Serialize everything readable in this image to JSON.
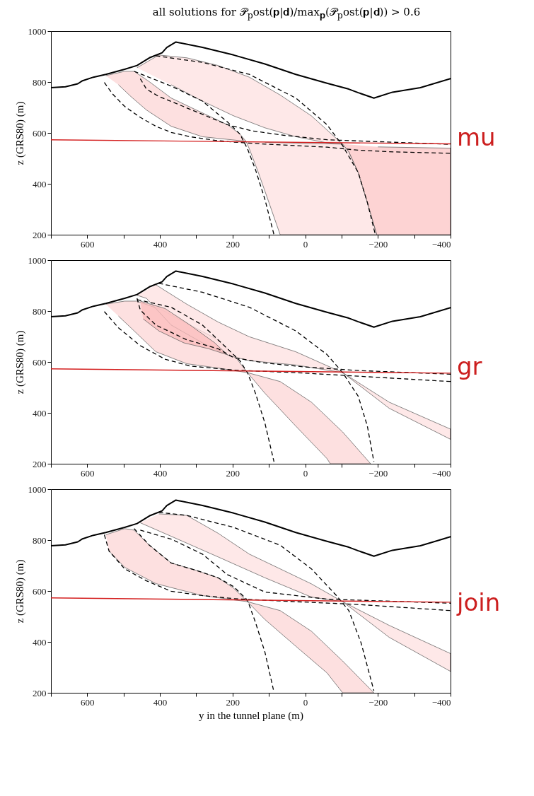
{
  "chart_data": [
    {
      "type": "line",
      "title": "all solutions for 𝒫$_{p}$ost(𝐩|𝐝)/max$_{𝐩}$(𝒫$_{p}$ost(𝐩|𝐝)) > 0.6",
      "ylabel": "z (GRS80) (m)",
      "annotations": [
        "mu"
      ],
      "xlim": [
        700,
        -400
      ],
      "xticks": [
        {
          "value": 700,
          "label": null
        },
        600,
        {
          "value": 500,
          "label": null
        },
        400,
        {
          "value": 300,
          "label": null
        },
        200,
        {
          "value": 100,
          "label": null
        },
        0,
        {
          "value": -100,
          "label": null
        },
        -200,
        {
          "value": -300,
          "label": null
        },
        -400
      ],
      "ylim": [
        200,
        1000
      ],
      "yticks": [
        200,
        400,
        600,
        800,
        1000
      ],
      "grid": false,
      "series": [
        {
          "type": "area",
          "color": "#fde0e0",
          "x": [
            549,
            497,
            471,
            429,
            369,
            300,
            214,
            180,
            163,
            283,
            369,
            437,
            480,
            514
          ],
          "values": [
            825,
            842,
            842,
            801,
            737,
            690,
            632,
            596,
            567,
            585,
            626,
            690,
            743,
            789
          ]
        },
        {
          "type": "area",
          "color": "#fde0e0",
          "x": [
            463,
            403,
            326,
            240,
            154,
            69,
            -17,
            -103,
            -60,
            26,
            111,
            197,
            283,
            369
          ],
          "values": [
            856,
            906,
            895,
            865,
            819,
            749,
            667,
            556,
            561,
            585,
            620,
            667,
            725,
            789
          ]
        },
        {
          "type": "area",
          "color": "#fde0e0",
          "x": [
            163,
            154,
            129,
            103,
            69,
            -197,
            -171,
            -146,
            -120,
            -103,
            26,
            111
          ],
          "values": [
            567,
            538,
            444,
            339,
            200,
            200,
            327,
            444,
            526,
            556,
            560,
            563
          ]
        },
        {
          "type": "area",
          "color": "#fcc4c4",
          "x": [
            -103,
            -120,
            -146,
            -171,
            -197,
            -400,
            -400,
            -200
          ],
          "values": [
            556,
            526,
            444,
            327,
            200,
            200,
            540,
            545
          ]
        },
        {
          "type": "line",
          "color": "#000000",
          "line_style": "dashed",
          "x": [
            553,
            531,
            497,
            454,
            411,
            369,
            317,
            249,
            197,
            111,
            26,
            -60,
            -146,
            -231,
            -400
          ],
          "values": [
            798,
            754,
            704,
            661,
            626,
            602,
            585,
            571,
            564,
            556,
            550,
            544,
            532,
            526,
            520
          ]
        },
        {
          "type": "line",
          "color": "#000000",
          "line_style": "dashed",
          "x": [
            454,
            437,
            403,
            351,
            283,
            214,
            146,
            60,
            -60,
            -400
          ],
          "values": [
            813,
            772,
            743,
            713,
            673,
            632,
            608,
            591,
            573,
            555
          ]
        },
        {
          "type": "line",
          "color": "#000000",
          "line_style": "dashed",
          "x": [
            471,
            369,
            283,
            214,
            180,
            159,
            137,
            111,
            86
          ],
          "values": [
            842,
            784,
            725,
            643,
            596,
            538,
            456,
            339,
            200
          ]
        },
        {
          "type": "line",
          "color": "#000000",
          "line_style": "dashed",
          "x": [
            411,
            283,
            154,
            26,
            -60,
            -103,
            -146,
            -171,
            -193
          ],
          "values": [
            903,
            877,
            830,
            737,
            632,
            550,
            444,
            327,
            200
          ]
        },
        {
          "type": "line",
          "color": "#d42020",
          "x": [
            700,
            -400
          ],
          "values": [
            573,
            557
          ]
        },
        {
          "type": "line",
          "color": "#000000",
          "x": [
            700,
            660,
            626,
            613,
            583,
            549,
            497,
            463,
            429,
            394,
            381,
            356,
            283,
            197,
            111,
            26,
            -60,
            -120,
            -146,
            -189,
            -240,
            -317,
            -400
          ],
          "values": [
            778,
            781,
            793,
            805,
            819,
            830,
            850,
            865,
            895,
            915,
            936,
            957,
            936,
            906,
            871,
            830,
            795,
            772,
            758,
            737,
            760,
            778,
            813
          ]
        }
      ]
    },
    {
      "type": "line",
      "ylabel": "z (GRS80) (m)",
      "annotations": [
        "gr"
      ],
      "xlim": [
        700,
        -400
      ],
      "xticks": [
        {
          "value": 700,
          "label": null
        },
        600,
        {
          "value": 500,
          "label": null
        },
        400,
        {
          "value": 300,
          "label": null
        },
        200,
        {
          "value": 100,
          "label": null
        },
        0,
        {
          "value": -100,
          "label": null
        },
        -200,
        {
          "value": -300,
          "label": null
        },
        -400
      ],
      "ylim": [
        200,
        1000
      ],
      "yticks": [
        200,
        400,
        600,
        800,
        1000
      ],
      "grid": false,
      "series": [
        {
          "type": "area",
          "color": "#fde0e0",
          "x": [
            549,
            497,
            463,
            394,
            317,
            240,
            197,
            159,
            111,
            26,
            -60,
            -69,
            -180,
            -103,
            -17,
            69,
            159,
            240,
            326,
            411,
            471,
            514
          ],
          "values": [
            827,
            839,
            839,
            804,
            745,
            687,
            628,
            558,
            477,
            348,
            220,
            200,
            200,
            325,
            442,
            523,
            558,
            576,
            593,
            640,
            722,
            780
          ]
        },
        {
          "type": "area",
          "color": "#fde0e0",
          "x": [
            411,
            326,
            240,
            154,
            26,
            -103,
            -231,
            -400,
            -400,
            -231,
            -103,
            26,
            154,
            206,
            283,
            369,
            437,
            463
          ],
          "values": [
            903,
            827,
            757,
            699,
            640,
            558,
            442,
            336,
            296,
            418,
            558,
            588,
            605,
            623,
            675,
            745,
            850,
            862
          ]
        },
        {
          "type": "area",
          "color": "#fbbcbc",
          "x": [
            454,
            386,
            317,
            249,
            214,
            266,
            334,
            403,
            446
          ],
          "values": [
            839,
            810,
            745,
            675,
            628,
            652,
            675,
            722,
            769
          ]
        },
        {
          "type": "line",
          "color": "#000000",
          "line_style": "dashed",
          "x": [
            553,
            514,
            454,
            386,
            317,
            197,
            26,
            -146,
            -400
          ],
          "values": [
            798,
            734,
            664,
            611,
            584,
            568,
            558,
            544,
            523
          ]
        },
        {
          "type": "line",
          "color": "#000000",
          "line_style": "dashed",
          "x": [
            463,
            454,
            411,
            326,
            240,
            197,
            111,
            0,
            -150,
            -400
          ],
          "values": [
            850,
            804,
            745,
            687,
            652,
            617,
            596,
            580,
            566,
            552
          ]
        },
        {
          "type": "line",
          "color": "#000000",
          "line_style": "dashed",
          "x": [
            463,
            369,
            283,
            214,
            180,
            159,
            137,
            111,
            86
          ],
          "values": [
            845,
            815,
            745,
            652,
            605,
            558,
            477,
            360,
            208
          ]
        },
        {
          "type": "line",
          "color": "#000000",
          "line_style": "dashed",
          "x": [
            403,
            283,
            154,
            26,
            -60,
            -103,
            -146,
            -171,
            -189
          ],
          "values": [
            909,
            874,
            815,
            722,
            629,
            558,
            465,
            348,
            208
          ]
        },
        {
          "type": "line",
          "color": "#d42020",
          "x": [
            700,
            -400
          ],
          "values": [
            573,
            556
          ]
        },
        {
          "type": "line",
          "color": "#000000",
          "x": [
            700,
            660,
            626,
            613,
            583,
            549,
            497,
            463,
            429,
            394,
            381,
            356,
            283,
            197,
            111,
            26,
            -60,
            -120,
            -146,
            -189,
            -240,
            -317,
            -400
          ],
          "values": [
            778,
            781,
            793,
            805,
            819,
            830,
            850,
            865,
            895,
            915,
            936,
            957,
            936,
            906,
            871,
            830,
            795,
            772,
            758,
            737,
            760,
            778,
            813
          ]
        }
      ]
    },
    {
      "type": "line",
      "ylabel": "z (GRS80) (m)",
      "xlabel": "y in the tunnel plane (m)",
      "annotations": [
        "join"
      ],
      "xlim": [
        700,
        -400
      ],
      "xticks": [
        {
          "value": 700,
          "label": null
        },
        600,
        {
          "value": 500,
          "label": null
        },
        400,
        {
          "value": 300,
          "label": null
        },
        200,
        {
          "value": 100,
          "label": null
        },
        0,
        {
          "value": -100,
          "label": null
        },
        -200,
        {
          "value": -300,
          "label": null
        },
        -400
      ],
      "ylim": [
        200,
        1000
      ],
      "yticks": [
        200,
        400,
        600,
        800,
        1000
      ],
      "grid": false,
      "series": [
        {
          "type": "area",
          "color": "#fde0e0",
          "x": [
            549,
            497,
            471,
            429,
            369,
            300,
            240,
            197,
            159,
            111,
            26,
            -60,
            -103,
            -189,
            -103,
            -17,
            69,
            159,
            283,
            411,
            497,
            540
          ],
          "values": [
            821,
            845,
            839,
            780,
            710,
            681,
            652,
            611,
            558,
            488,
            383,
            278,
            200,
            200,
            325,
            442,
            523,
            558,
            582,
            629,
            693,
            757
          ]
        },
        {
          "type": "area",
          "color": "#fde0e0",
          "x": [
            403,
            326,
            240,
            154,
            69,
            -17,
            -103,
            -231,
            -400,
            -400,
            -231,
            -103,
            -17,
            111,
            240,
            369,
            454
          ],
          "values": [
            903,
            897,
            827,
            745,
            687,
            628,
            558,
            465,
            354,
            284,
            418,
            558,
            576,
            652,
            734,
            815,
            868
          ]
        },
        {
          "type": "line",
          "color": "#000000",
          "line_style": "dashed",
          "x": [
            553,
            540,
            497,
            437,
            369,
            283,
            197,
            26,
            -146,
            -400
          ],
          "values": [
            821,
            757,
            687,
            640,
            599,
            582,
            570,
            558,
            547,
            523
          ]
        },
        {
          "type": "line",
          "color": "#000000",
          "line_style": "dashed",
          "x": [
            471,
            429,
            369,
            300,
            240,
            197,
            159,
            137,
            111,
            86
          ],
          "values": [
            845,
            780,
            710,
            681,
            652,
            617,
            564,
            477,
            360,
            202
          ]
        },
        {
          "type": "line",
          "color": "#000000",
          "line_style": "dashed",
          "x": [
            454,
            369,
            283,
            214,
            111,
            -60,
            -400
          ],
          "values": [
            839,
            804,
            745,
            664,
            596,
            568,
            552
          ]
        },
        {
          "type": "line",
          "color": "#000000",
          "line_style": "dashed",
          "x": [
            403,
            326,
            197,
            69,
            -17,
            -86,
            -120,
            -154,
            -189
          ],
          "values": [
            909,
            897,
            850,
            780,
            687,
            582,
            523,
            395,
            208
          ]
        },
        {
          "type": "line",
          "color": "#d42020",
          "x": [
            700,
            -400
          ],
          "values": [
            573,
            556
          ]
        },
        {
          "type": "line",
          "color": "#000000",
          "x": [
            700,
            660,
            626,
            613,
            583,
            549,
            497,
            463,
            429,
            394,
            381,
            356,
            283,
            197,
            111,
            26,
            -60,
            -120,
            -146,
            -189,
            -240,
            -317,
            -400
          ],
          "values": [
            778,
            781,
            793,
            805,
            819,
            830,
            850,
            865,
            895,
            915,
            936,
            957,
            936,
            906,
            871,
            830,
            795,
            772,
            758,
            737,
            760,
            778,
            813
          ]
        }
      ]
    }
  ]
}
